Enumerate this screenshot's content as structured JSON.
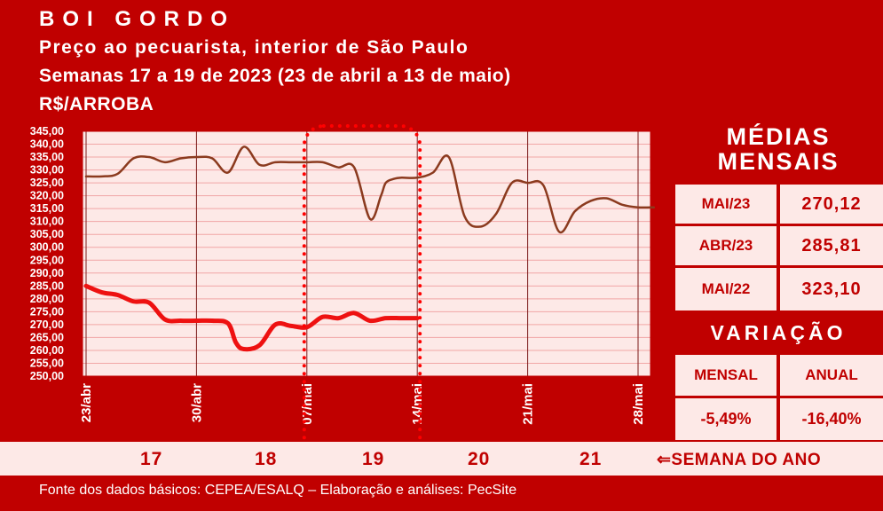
{
  "header": {
    "title": "BOI GORDO",
    "subtitle": "Preço ao pecuarista, interior de São Paulo",
    "period": "Semanas 17 a 19 de 2023 (23 de abril a 13 de maio)",
    "unit": "R$/ARROBA"
  },
  "monthly_averages": {
    "title_line1": "MÉDIAS",
    "title_line2": "MENSAIS",
    "rows": [
      {
        "label": "MAI/23",
        "value": "270,12"
      },
      {
        "label": "ABR/23",
        "value": "285,81"
      },
      {
        "label": "MAI/22",
        "value": "323,10"
      }
    ]
  },
  "variation": {
    "title": "VARIAÇÃO",
    "headers": [
      "MENSAL",
      "ANUAL"
    ],
    "values": [
      "-5,49%",
      "-16,40%"
    ]
  },
  "weeks": {
    "labels": [
      "17",
      "18",
      "19",
      "20",
      "21"
    ],
    "axis_label": "SEMANA DO ANO"
  },
  "footer": "Fonte dos dados básicos: CEPEA/ESALQ – Elaboração e análises: PecSite",
  "colors": {
    "background": "#c00000",
    "plot_bg": "#fde9e7",
    "current_year_line": "#ee1111",
    "previous_year_line": "#8b3a1e",
    "highlight": "#ff0000"
  },
  "chart_data": {
    "type": "line",
    "ylim": [
      250,
      345
    ],
    "ytick_step": 5,
    "yticks": [
      "250,00",
      "255,00",
      "260,00",
      "265,00",
      "270,00",
      "275,00",
      "280,00",
      "285,00",
      "290,00",
      "295,00",
      "300,00",
      "305,00",
      "310,00",
      "315,00",
      "320,00",
      "325,00",
      "330,00",
      "335,00",
      "340,00",
      "345,00"
    ],
    "xlim": [
      0,
      36
    ],
    "xticks": [
      {
        "day": 0,
        "label": "23/abr"
      },
      {
        "day": 7,
        "label": "30/abr"
      },
      {
        "day": 14,
        "label": "07/mai"
      },
      {
        "day": 21,
        "label": "14/mai"
      },
      {
        "day": 28,
        "label": "21/mai"
      },
      {
        "day": 35,
        "label": "28/mai"
      }
    ],
    "highlight_week": {
      "start_day": 14,
      "end_day": 21,
      "label": "19"
    },
    "series": [
      {
        "key": "prev",
        "x": [
          0,
          1,
          2,
          3,
          4,
          5,
          6,
          7,
          8,
          9,
          10,
          11,
          12,
          13,
          14,
          15,
          16,
          17,
          18,
          18.7,
          19,
          19.5,
          20,
          21,
          22,
          23,
          24,
          25,
          26,
          27,
          28,
          29,
          30,
          31,
          32,
          33,
          34,
          35,
          36
        ],
        "y": [
          327.5,
          327.5,
          328.5,
          334.5,
          335,
          333,
          334.5,
          335,
          334.5,
          329,
          339,
          332,
          333,
          333,
          333,
          333,
          331,
          331,
          311,
          320,
          325,
          326.5,
          327,
          327,
          329,
          335,
          312,
          308,
          313,
          325,
          325,
          324,
          306,
          314,
          318,
          319,
          316.5,
          315.5,
          315.5
        ]
      },
      {
        "key": "curr",
        "x": [
          0,
          1,
          2,
          3,
          4,
          5,
          6,
          7,
          8,
          9,
          9.5,
          10,
          11,
          12,
          13,
          14,
          15,
          16,
          17,
          18,
          19,
          20,
          21
        ],
        "y": [
          285,
          282.5,
          281.5,
          279,
          278.5,
          272,
          271.5,
          271.5,
          271.5,
          270.5,
          263,
          260.5,
          262,
          270,
          269.5,
          269,
          273,
          272.5,
          274.5,
          271.5,
          272.5,
          272.5,
          272.5
        ]
      }
    ]
  }
}
